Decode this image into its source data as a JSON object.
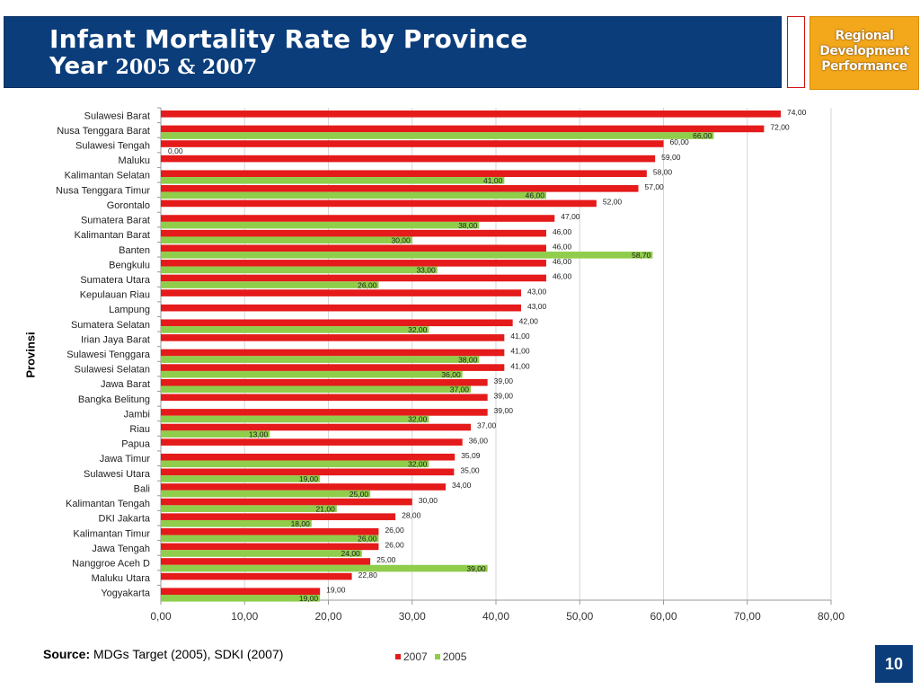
{
  "header": {
    "title_line1": "Infant Mortality Rate by Province",
    "title_line2_word": "Year",
    "title_line2_years": "2005 & 2007",
    "badge_lines": [
      "Regional",
      "Development",
      "Performance"
    ],
    "background_color": "#0b3d7b",
    "badge_color": "#f3a71a"
  },
  "chart_data": {
    "type": "bar",
    "orientation": "horizontal",
    "ylabel": "Provinsi",
    "xlabel": "",
    "xlim": [
      0,
      80
    ],
    "xticks": [
      "0,00",
      "10,00",
      "20,00",
      "30,00",
      "40,00",
      "50,00",
      "60,00",
      "70,00",
      "80,00"
    ],
    "grid": true,
    "legend_position": "bottom-center",
    "categories": [
      "Sulawesi Barat",
      "Nusa Tenggara  Barat",
      "Sulawesi Tengah",
      "Maluku",
      "Kalimantan Selatan",
      "Nusa Tenggara  Timur",
      "Gorontalo",
      "Sumatera Barat",
      "Kalimantan Barat",
      "Banten",
      "Bengkulu",
      "Sumatera Utara",
      "Kepulauan Riau",
      "Lampung",
      "Sumatera Selatan",
      "Irian Jaya Barat",
      "Sulawesi Tenggara",
      "Sulawesi Selatan",
      "Jawa Barat",
      "Bangka Belitung",
      "Jambi",
      "Riau",
      "Papua",
      "Jawa Timur",
      "Sulawesi Utara",
      "Bali",
      "Kalimantan Tengah",
      "DKI Jakarta",
      "Kalimantan Timur",
      "Jawa Tengah",
      "Nanggroe Aceh D",
      "Maluku Utara",
      "Yogyakarta"
    ],
    "series": [
      {
        "name": "2007",
        "color": "#e51a1a",
        "values": [
          74,
          72,
          60,
          59,
          58,
          57,
          52,
          47,
          46,
          46,
          46,
          46,
          43,
          43,
          42,
          41,
          41,
          41,
          39,
          39,
          39,
          37,
          36,
          35.09,
          35,
          34,
          30,
          28,
          26,
          26,
          25,
          22.8,
          19
        ],
        "labels": [
          "74,00",
          "72,00",
          "60,00",
          "59,00",
          "58,00",
          "57,00",
          "52,00",
          "47,00",
          "46,00",
          "46,00",
          "46,00",
          "46,00",
          "43,00",
          "43,00",
          "42,00",
          "41,00",
          "41,00",
          "41,00",
          "39,00",
          "39,00",
          "39,00",
          "37,00",
          "36,00",
          "35,09",
          "35,00",
          "34,00",
          "30,00",
          "28,00",
          "26,00",
          "26,00",
          "25,00",
          "22,80",
          "19,00"
        ]
      },
      {
        "name": "2005",
        "color": "#8fcd4a",
        "values": [
          null,
          66,
          0,
          null,
          41,
          46,
          null,
          38,
          30,
          58.7,
          33,
          26,
          null,
          null,
          32,
          null,
          38,
          36,
          37,
          null,
          32,
          13,
          null,
          32,
          19,
          25,
          21,
          18,
          26,
          24,
          39,
          null,
          19
        ],
        "labels": [
          null,
          "66,00",
          "0,00",
          null,
          "41,00",
          "46,00",
          null,
          "38,00",
          "30,00",
          "58,70",
          "33,00",
          "26,00",
          null,
          null,
          "32,00",
          null,
          "38,00",
          "36,00",
          "37,00",
          null,
          "32,00",
          "13,00",
          null,
          "32,00",
          "19,00",
          "25,00",
          "21,00",
          "18,00",
          "26,00",
          "24,00",
          "39,00",
          null,
          "19,00"
        ]
      }
    ]
  },
  "source": {
    "label": "Source:",
    "text": " MDGs Target (2005), SDKI (2007)"
  },
  "legend": {
    "items": [
      {
        "name": "2007",
        "color": "#e51a1a"
      },
      {
        "name": "2005",
        "color": "#8fcd4a"
      }
    ]
  },
  "page_number": "10"
}
